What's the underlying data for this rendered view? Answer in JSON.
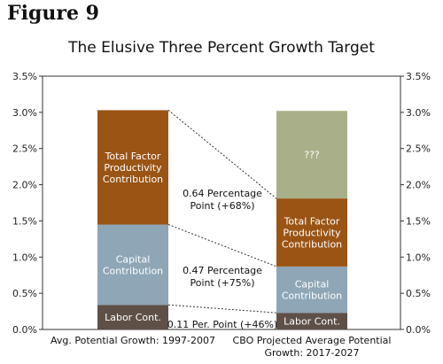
{
  "figure_label": "Figure 9",
  "chart_data": {
    "type": "bar",
    "stacked": true,
    "title": "The Elusive Three Percent Growth Target",
    "categories": [
      [
        "Avg. Potential Growth: 1997-2007"
      ],
      [
        "CBO Projected Average Potential",
        "Growth: 2017-2027"
      ]
    ],
    "y_axis": {
      "min": 0,
      "max": 3.5,
      "ticks": [
        "0.0%",
        "0.5%",
        "1.0%",
        "1.5%",
        "2.0%",
        "2.5%",
        "3.0%",
        "3.5%"
      ],
      "tick_values": [
        0,
        0.5,
        1.0,
        1.5,
        2.0,
        2.5,
        3.0,
        3.5
      ],
      "mirrored_right": true
    },
    "grid": false,
    "series": [
      {
        "name": "Labor Cont.",
        "label_lines": [
          "Labor Cont."
        ],
        "color": "#5e5047",
        "values": [
          0.34,
          0.23
        ]
      },
      {
        "name": "Capital Contribution",
        "label_lines": [
          "Capital",
          "Contribution"
        ],
        "color": "#8ea6b6",
        "values": [
          1.11,
          0.64
        ]
      },
      {
        "name": "Total Factor Productivity Contribution",
        "label_lines": [
          "Total Factor",
          "Productivity",
          "Contribution"
        ],
        "color": "#9a5414",
        "values": [
          1.58,
          0.94
        ]
      },
      {
        "name": "???",
        "label_lines": [
          "???"
        ],
        "color": "#a9b089",
        "values": [
          0,
          1.21
        ]
      }
    ],
    "annotations": [
      {
        "series_index": 2,
        "lines": [
          "0.64 Percentage",
          "Point (+68%)"
        ]
      },
      {
        "series_index": 1,
        "lines": [
          "0.47 Percentage",
          "Point (+75%)"
        ]
      },
      {
        "series_index": 0,
        "lines": [
          "0.11 Per. Point (+46%)"
        ]
      }
    ]
  }
}
